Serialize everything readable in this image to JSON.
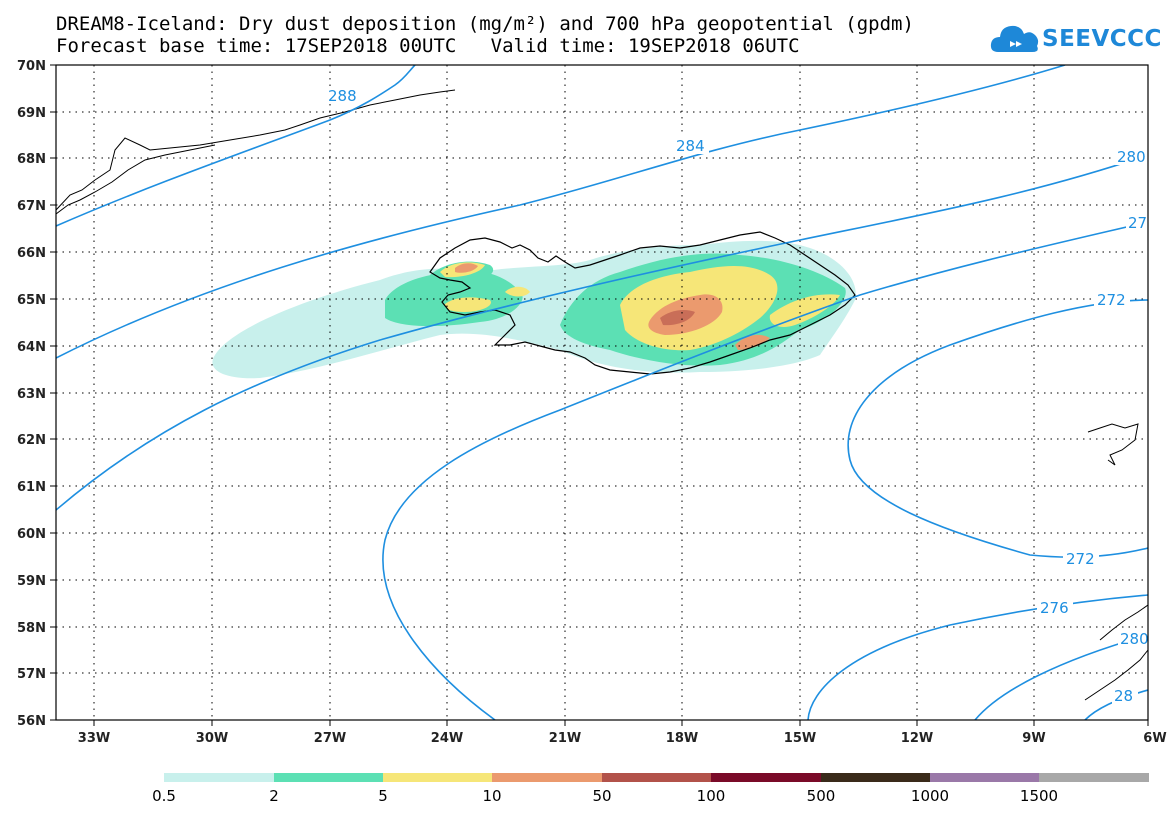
{
  "header": {
    "title_line1": "DREAM8-Iceland: Dry dust deposition (mg/m²) and 700 hPa geopotential (gpdm)",
    "title_line2": "Forecast base time: 17SEP2018 00UTC   Valid time: 19SEP2018 06UTC"
  },
  "logo": {
    "text": "SEEVCCC",
    "icon": "cloud-icon",
    "color": "#1e88d8"
  },
  "map": {
    "lat_labels": [
      "70N",
      "69N",
      "68N",
      "67N",
      "66N",
      "65N",
      "64N",
      "63N",
      "62N",
      "61N",
      "60N",
      "59N",
      "58N",
      "57N",
      "56N"
    ],
    "lon_labels": [
      "33W",
      "30W",
      "27W",
      "24W",
      "21W",
      "18W",
      "15W",
      "12W",
      "9W",
      "6W"
    ],
    "contour_color": "#1e8fe0",
    "contour_labels": [
      "288",
      "284",
      "280",
      "27",
      "272",
      "272",
      "276",
      "280",
      "28"
    ]
  },
  "legend": {
    "colors": [
      "#c8f0ec",
      "#5ce0b4",
      "#f6e678",
      "#eb9a6e",
      "#b2524a",
      "#7a0a28",
      "#3a2a1a",
      "#9a78a8",
      "#a8a8a8"
    ],
    "labels": [
      "0.5",
      "2",
      "5",
      "10",
      "50",
      "100",
      "500",
      "1000",
      "1500"
    ]
  }
}
